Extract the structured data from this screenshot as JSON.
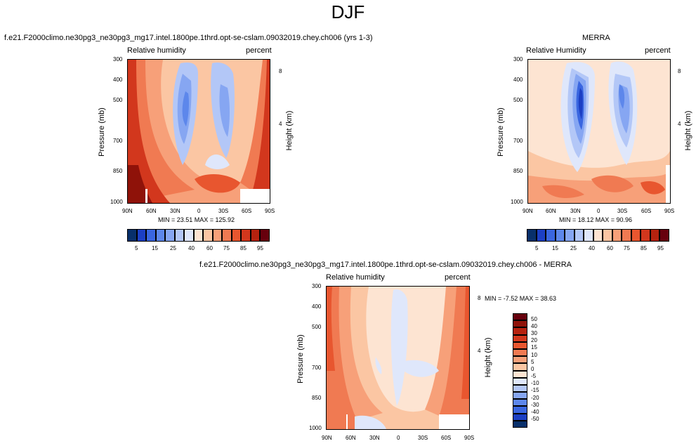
{
  "suptitle": "DJF",
  "colors": {
    "scale": [
      "#08306b",
      "#1c3fc4",
      "#3a66e0",
      "#5d87eb",
      "#86a6f2",
      "#b3c7f7",
      "#dfe7fb",
      "#fde4d2",
      "#fbc6a3",
      "#f7a079",
      "#f07a52",
      "#e8562f",
      "#d2371d",
      "#b5220f",
      "#8f1209",
      "#67000d"
    ]
  },
  "panels": [
    {
      "title": "f.e21.F2000climo.ne30pg3_ne30pg3_mg17.intel.1800pe.1thrd.opt-se-cslam.09032019.chey.ch006 (yrs 1-3)",
      "left_label": "Relative humidity",
      "right_label": "percent",
      "ylabel": "Pressure (mb)",
      "ylabel2": "Height (km)",
      "yticks": [
        "300",
        "400",
        "500",
        "700",
        "850",
        "1000"
      ],
      "yticks2": [
        "8",
        "4"
      ],
      "xticks": [
        "90N",
        "60N",
        "30N",
        "0",
        "30S",
        "60S",
        "90S"
      ],
      "minmax": "MIN = 23.51  MAX = 125.92",
      "colorbar_labels": [
        "5",
        "15",
        "25",
        "40",
        "60",
        "75",
        "85",
        "95"
      ]
    },
    {
      "title": "MERRA",
      "left_label": "Relative Humidity",
      "right_label": "percent",
      "ylabel": "Pressure (mb)",
      "ylabel2": "Height (km)",
      "yticks": [
        "300",
        "400",
        "500",
        "700",
        "850",
        "1000"
      ],
      "yticks2": [
        "8",
        "4"
      ],
      "xticks": [
        "90N",
        "60N",
        "30N",
        "0",
        "30S",
        "60S",
        "90S"
      ],
      "minmax": "MIN = 18.12  MAX = 90.96",
      "colorbar_labels": [
        "5",
        "15",
        "25",
        "40",
        "60",
        "75",
        "85",
        "95"
      ]
    },
    {
      "title": "f.e21.F2000climo.ne30pg3_ne30pg3_mg17.intel.1800pe.1thrd.opt-se-cslam.09032019.chey.ch006 - MERRA",
      "left_label": "Relative humidity",
      "right_label": "percent",
      "ylabel": "Pressure (mb)",
      "ylabel2": "Height (km)",
      "yticks": [
        "300",
        "400",
        "500",
        "700",
        "850",
        "1000"
      ],
      "yticks2": [
        "8",
        "4"
      ],
      "xticks": [
        "90N",
        "60N",
        "30N",
        "0",
        "30S",
        "60S",
        "90S"
      ],
      "minmax": "MIN = -7.52  MAX = 38.63",
      "colorbar_labels": [
        "50",
        "40",
        "30",
        "20",
        "15",
        "10",
        "5",
        "0",
        "-5",
        "-10",
        "-15",
        "-20",
        "-30",
        "-40",
        "-50"
      ]
    }
  ],
  "chart_data": [
    {
      "type": "heatmap",
      "title": "f.e21.F2000climo.ne30pg3_ne30pg3_mg17.intel.1800pe.1thrd.opt-se-cslam.09032019.chey.ch006 (yrs 1-3)",
      "xlabel": "",
      "ylabel": "Pressure (mb)",
      "x_ticks": [
        "90N",
        "60N",
        "30N",
        "0",
        "30S",
        "60S",
        "90S"
      ],
      "y_ticks": [
        300,
        400,
        500,
        700,
        850,
        1000
      ],
      "y_scale": "log",
      "ylim": [
        1000,
        300
      ],
      "levels": [
        5,
        15,
        25,
        40,
        60,
        75,
        85,
        95
      ],
      "min": 23.51,
      "max": 125.92
    },
    {
      "type": "heatmap",
      "title": "MERRA",
      "xlabel": "",
      "ylabel": "Pressure (mb)",
      "x_ticks": [
        "90N",
        "60N",
        "30N",
        "0",
        "30S",
        "60S",
        "90S"
      ],
      "y_ticks": [
        300,
        400,
        500,
        700,
        850,
        1000
      ],
      "y_scale": "log",
      "ylim": [
        1000,
        300
      ],
      "levels": [
        5,
        15,
        25,
        40,
        60,
        75,
        85,
        95
      ],
      "min": 18.12,
      "max": 90.96
    },
    {
      "type": "heatmap",
      "title": "f.e21.F2000climo.ne30pg3_ne30pg3_mg17.intel.1800pe.1thrd.opt-se-cslam.09032019.chey.ch006 - MERRA",
      "xlabel": "",
      "ylabel": "Pressure (mb)",
      "x_ticks": [
        "90N",
        "60N",
        "30N",
        "0",
        "30S",
        "60S",
        "90S"
      ],
      "y_ticks": [
        300,
        400,
        500,
        700,
        850,
        1000
      ],
      "y_scale": "log",
      "ylim": [
        1000,
        300
      ],
      "levels": [
        -50,
        -40,
        -30,
        -20,
        -15,
        -10,
        -5,
        0,
        5,
        10,
        15,
        20,
        30,
        40,
        50
      ],
      "min": -7.52,
      "max": 38.63
    }
  ]
}
